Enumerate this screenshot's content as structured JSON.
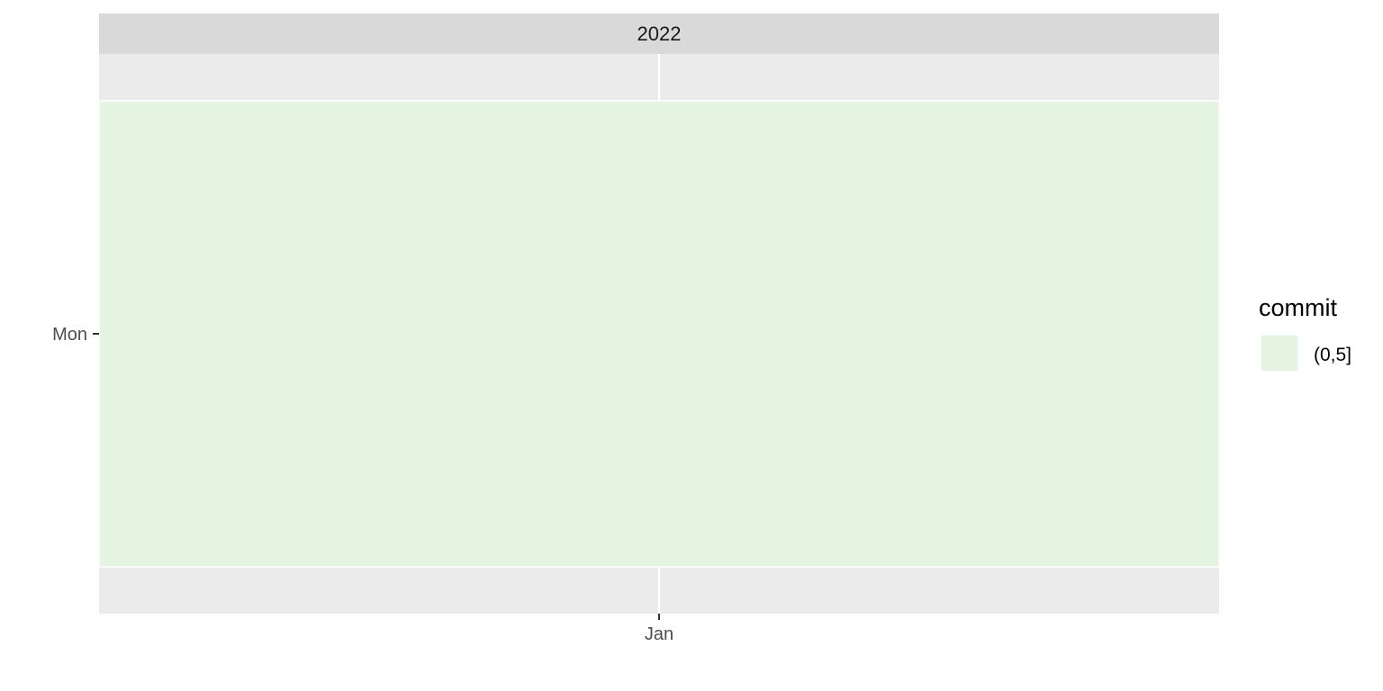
{
  "chart_data": {
    "type": "heatmap",
    "facet": "2022",
    "x_categories": [
      "Jan"
    ],
    "y_categories": [
      "Mon"
    ],
    "cells": [
      {
        "x": "Jan",
        "y": "Mon",
        "commit_bin": "(0,5]"
      }
    ],
    "legend": {
      "title": "commit",
      "placement": "right",
      "entries": [
        {
          "label": "(0,5]",
          "color": "#e5f4e0"
        }
      ]
    },
    "grid": true
  },
  "colors": {
    "panel_background": "#ebebeb",
    "strip_background": "#d9d9d9",
    "grid_line": "#ffffff",
    "tick_text": "#4d4d4d"
  }
}
